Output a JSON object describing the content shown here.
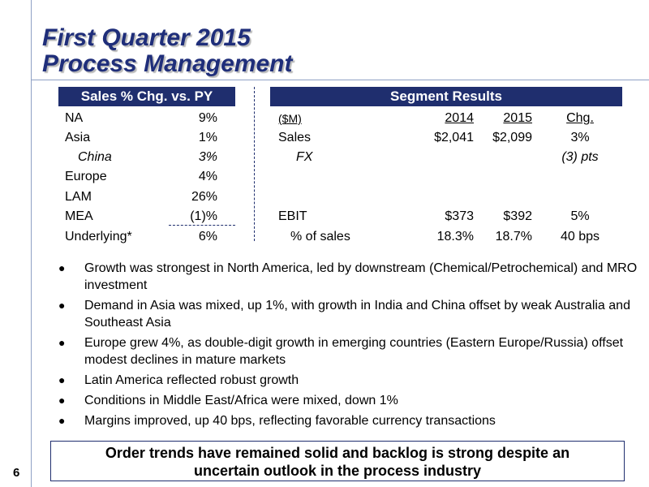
{
  "title": {
    "line1": "First Quarter 2015",
    "line2": "Process Management"
  },
  "left_table": {
    "header": "Sales % Chg. vs. PY",
    "rows": [
      {
        "region": "NA",
        "value": "9%",
        "italic": false
      },
      {
        "region": "Asia",
        "value": "1%",
        "italic": false
      },
      {
        "region": "China",
        "value": "3%",
        "italic": true
      },
      {
        "region": "Europe",
        "value": "4%",
        "italic": false
      },
      {
        "region": "LAM",
        "value": "26%",
        "italic": false
      },
      {
        "region": "MEA",
        "value": "(1)%",
        "italic": false
      },
      {
        "region": "Underlying*",
        "value": "6%",
        "italic": false
      }
    ]
  },
  "right_table": {
    "header": "Segment Results",
    "col_units": "($M)",
    "col_2014": "2014",
    "col_2015": "2015",
    "col_chg": "Chg.",
    "rows": [
      {
        "label": "Sales",
        "y2014": "$2,041",
        "y2015": "$2,099",
        "chg": "3%"
      },
      {
        "label": "FX",
        "y2014": "",
        "y2015": "",
        "chg": "(3) pts"
      },
      {
        "label": "EBIT",
        "y2014": "$373",
        "y2015": "$392",
        "chg": "5%"
      },
      {
        "label": "% of sales",
        "y2014": "18.3%",
        "y2015": "18.7%",
        "chg": "40 bps"
      }
    ]
  },
  "bullets": [
    "Growth was strongest in North America, led by downstream (Chemical/Petrochemical) and MRO investment",
    "Demand in Asia was mixed, up 1%, with growth in India and China offset by weak Australia and Southeast Asia",
    "Europe grew 4%, as double-digit growth in emerging countries (Eastern Europe/Russia) offset modest declines in mature markets",
    "Latin America reflected robust growth",
    "Conditions in Middle East/Africa were mixed, down 1%",
    "Margins improved, up 40 bps, reflecting favorable currency transactions"
  ],
  "bullet_symbol": "●",
  "footer": {
    "line1": "Order trends have remained solid and backlog is strong despite an",
    "line2": "uncertain outlook in the process industry"
  },
  "page_number": "6",
  "colors": {
    "header_bg": "#1f2e6e",
    "title": "#1f2e7a",
    "rule": "#8fa0c4"
  }
}
